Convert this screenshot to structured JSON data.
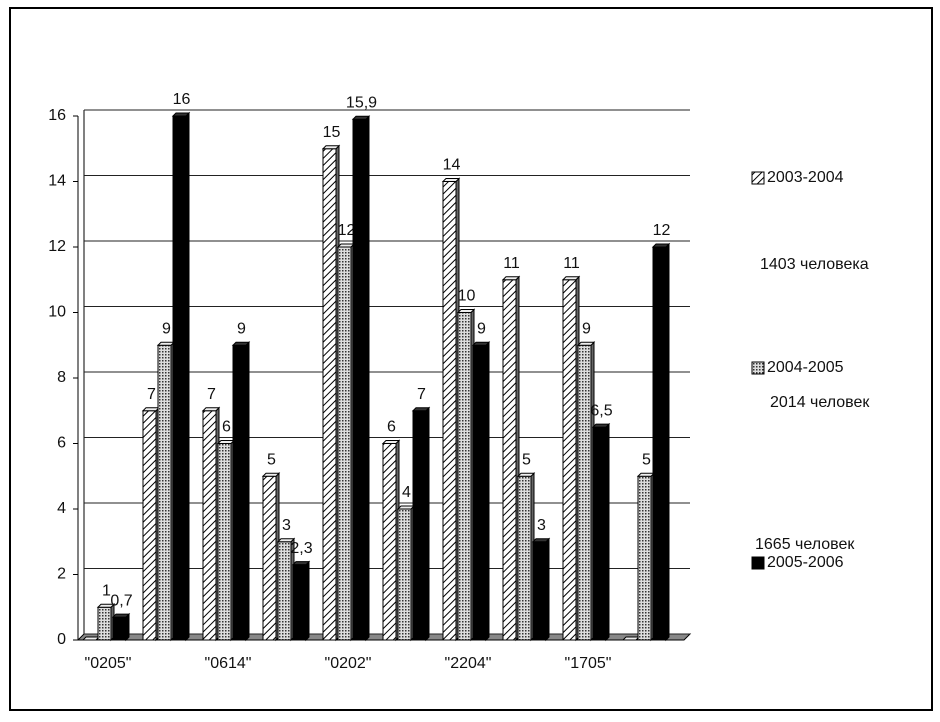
{
  "chart_data": {
    "type": "bar3d",
    "categories": [
      "\"0205\"",
      null,
      "\"0614\"",
      null,
      "\"0202\"",
      null,
      "\"2204\"",
      null,
      "\"1705\"",
      null
    ],
    "series": [
      {
        "name": "2003-2004",
        "color": "#ffffff",
        "pattern": "hatch",
        "values": [
          0,
          7,
          7,
          5,
          15,
          6,
          14,
          11,
          11,
          0
        ],
        "value_labels": [
          null,
          "7",
          "7",
          "5",
          "15",
          "6",
          "14",
          "11",
          "11",
          null
        ]
      },
      {
        "name": "2004-2005",
        "color": "#bbbbbb",
        "pattern": "dots",
        "values": [
          1,
          9,
          6,
          3,
          12,
          4,
          10,
          5,
          9,
          5
        ],
        "value_labels": [
          "1",
          "9",
          "6",
          "3",
          "12",
          "4",
          "10",
          "5",
          "9",
          "5"
        ]
      },
      {
        "name": "2005-2006",
        "color": "#000000",
        "pattern": "solid",
        "values": [
          0.7,
          16,
          9,
          2.3,
          15.9,
          7,
          9,
          3,
          6.5,
          12
        ],
        "value_labels": [
          "0,7",
          "16",
          "9",
          "2,3",
          "15,9",
          "7",
          "9",
          "3",
          "6,5",
          "12"
        ]
      }
    ],
    "annotations": [
      "1403 человека",
      "2014 человек",
      "1665 человек"
    ],
    "ylim": [
      0,
      16
    ],
    "yticks": [
      0,
      2,
      4,
      6,
      8,
      10,
      12,
      14,
      16
    ],
    "grid": true,
    "legend": "right"
  }
}
